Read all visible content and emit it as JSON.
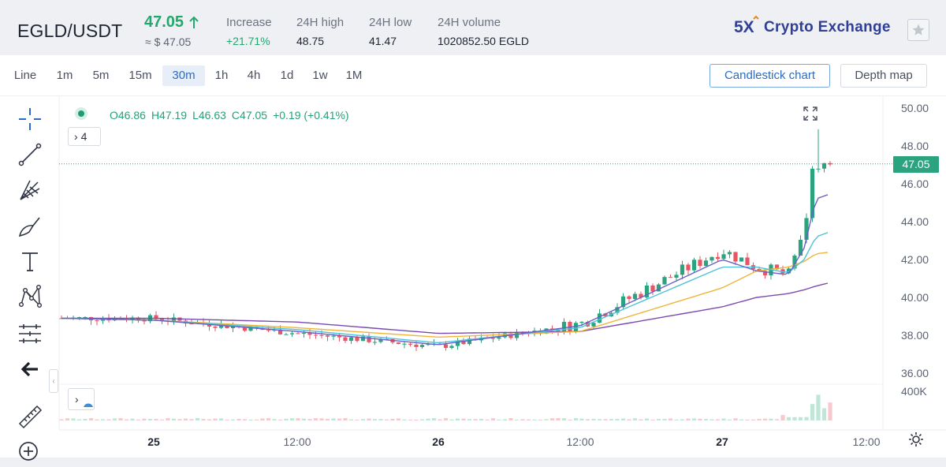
{
  "header": {
    "pair": "EGLD/USDT",
    "price": "47.05",
    "approx_price": "≈ $ 47.05",
    "stats": [
      {
        "label": "Increase",
        "value": "+21.71%",
        "color": "#23a86d"
      },
      {
        "label": "24H high",
        "value": "48.75"
      },
      {
        "label": "24H low",
        "value": "41.47"
      },
      {
        "label": "24H volume",
        "value": "1020852.50 EGLD"
      }
    ],
    "brand": "Crypto Exchange",
    "brand_logo_text": "5X",
    "colors": {
      "up": "#23a86d",
      "down": "#e85663",
      "brand": "#2f3f93"
    }
  },
  "timeframes": [
    "Line",
    "1m",
    "5m",
    "15m",
    "30m",
    "1h",
    "4h",
    "1d",
    "1w",
    "1M"
  ],
  "active_timeframe": "30m",
  "views": [
    "Candlestick chart",
    "Depth map"
  ],
  "active_view": "Candlestick chart",
  "tools": [
    "crosshair-icon",
    "trend-line-icon",
    "fib-fan-icon",
    "brush-icon",
    "text-icon",
    "pattern-icon",
    "measure-icon",
    "back-arrow-icon",
    "ruler-icon",
    "zoom-icon"
  ],
  "chart": {
    "ohlc": {
      "open": "O46.86",
      "high": "H47.19",
      "low": "L46.63",
      "close": "C47.05",
      "change": "+0.19 (+0.41%)"
    },
    "indicator_toggle": "4",
    "current_price_tag": "47.05",
    "y_ticks": [
      "50.00",
      "48.00",
      "46.00",
      "44.00",
      "42.00",
      "40.00",
      "38.00",
      "36.00"
    ],
    "volume_tick": "400K",
    "x_ticks": [
      "25",
      "12:00",
      "26",
      "12:00",
      "27",
      "12:00"
    ]
  },
  "chart_data": {
    "type": "candlestick",
    "x": [
      "24 12:00",
      "25 00:00",
      "25 12:00",
      "26 00:00",
      "26 12:00",
      "27 00:00",
      "27 06:00",
      "27 09:00",
      "27 10:00",
      "27 10:30",
      "27 11:00"
    ],
    "close": [
      38.9,
      38.9,
      38.1,
      37.4,
      38.6,
      42.5,
      41.6,
      41.2,
      43.2,
      47.0,
      47.05
    ],
    "ma_lines": [
      {
        "color": "#7a4ab0",
        "values": [
          38.9,
          38.9,
          38.7,
          38.1,
          38.2,
          39.5,
          40.0,
          40.2,
          40.4,
          40.6,
          40.8
        ]
      },
      {
        "color": "#f0b43a",
        "values": [
          38.9,
          38.8,
          38.4,
          37.9,
          38.2,
          40.5,
          41.4,
          41.6,
          41.9,
          42.3,
          42.4
        ]
      },
      {
        "color": "#4fc3d9",
        "values": [
          38.9,
          38.8,
          38.3,
          37.6,
          38.4,
          41.6,
          41.6,
          41.3,
          42.0,
          43.2,
          43.5
        ]
      },
      {
        "color": "#6b5fc8",
        "values": [
          38.9,
          38.8,
          38.2,
          37.5,
          38.5,
          42.0,
          41.4,
          41.2,
          42.6,
          45.2,
          45.5
        ]
      }
    ],
    "ylim": [
      35.5,
      50.5
    ],
    "last_price": 47.05
  }
}
